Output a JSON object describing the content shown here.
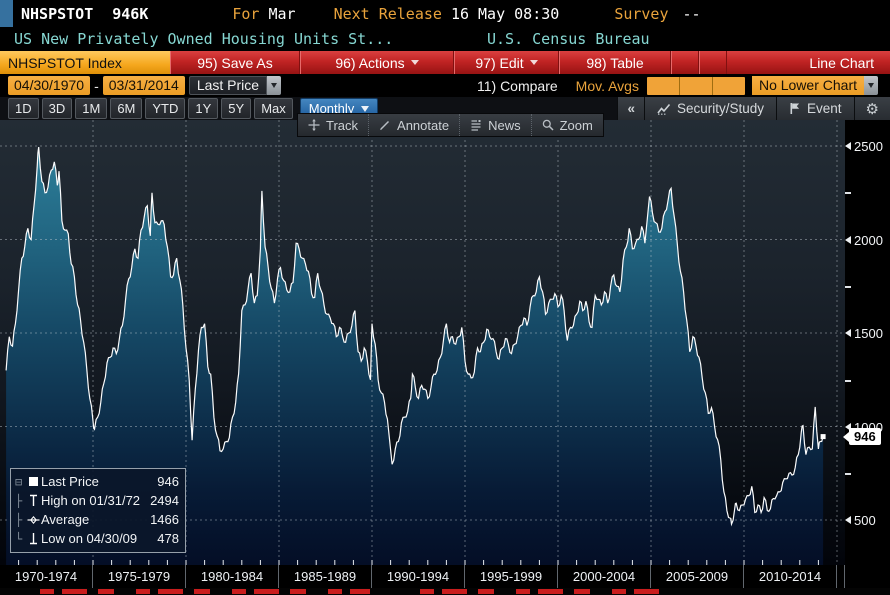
{
  "titlebar": {
    "ticker": "NHSPSTOT",
    "current_value": "946K",
    "for_label": "For",
    "period": "Mar",
    "next_release_label": "Next Release",
    "next_release": "16 May 08:30",
    "survey_label": "Survey",
    "survey_value": "--"
  },
  "descbar": {
    "series_name": "US New Privately Owned Housing Units St...",
    "source": "U.S. Census Bureau"
  },
  "menubar": {
    "security_tab": "NHSPSTOT Index",
    "save_as": "95) Save As",
    "actions": "96) Actions",
    "edit": "97) Edit",
    "table": "98) Table",
    "chart_type": "Line Chart"
  },
  "rangebar": {
    "start_date": "04/30/1970",
    "dash": "-",
    "end_date": "03/31/2014",
    "price_field": "Last Price",
    "compare": "11) Compare",
    "mov_avgs": "Mov. Avgs",
    "lower_chart": "No Lower Chart"
  },
  "periodbar": {
    "periods": [
      "1D",
      "3D",
      "1M",
      "6M",
      "YTD",
      "1Y",
      "5Y",
      "Max"
    ],
    "frequency": "Monthly",
    "collapse": "«",
    "security_study": "Security/Study",
    "event": "Event",
    "gear": "⚙"
  },
  "chart_toolbar": {
    "track": "Track",
    "annotate": "Annotate",
    "news": "News",
    "zoom": "Zoom"
  },
  "legend": {
    "tree": [
      "⊟",
      "├",
      "├",
      "└"
    ],
    "rows": [
      {
        "label": "Last Price",
        "value": "946"
      },
      {
        "label": "High on 01/31/72",
        "value": "2494"
      },
      {
        "label": "Average",
        "value": "1466"
      },
      {
        "label": "Low on 04/30/09",
        "value": "478"
      }
    ]
  },
  "y_axis": {
    "labels": [
      "2500",
      "2000",
      "1500",
      "1000",
      "500"
    ],
    "last_price_tag": "946"
  },
  "x_axis": {
    "labels": [
      "1970-1974",
      "1975-1979",
      "1980-1984",
      "1985-1989",
      "1990-1994",
      "1995-1999",
      "2000-2004",
      "2005-2009",
      "2010-2014"
    ]
  },
  "chart_data": {
    "type": "line",
    "style": "area",
    "title": "NHSPSTOT Index - US New Privately Owned Housing Units Started, Monthly, Last Price",
    "xlabel": "",
    "ylabel": "",
    "x_start": 1970.33,
    "x_end": 2014.25,
    "ylim": [
      260,
      2560
    ],
    "yticks": [
      500,
      1000,
      1500,
      2000,
      2500
    ],
    "yticks_minor": [
      750,
      1250,
      1750,
      2250
    ],
    "x_gridyears": [
      1975,
      1980,
      1985,
      1990,
      1995,
      2000,
      2005,
      2010,
      2015
    ],
    "x_bins": [
      "1970-1974",
      "1975-1979",
      "1980-1984",
      "1985-1989",
      "1990-1994",
      "1995-1999",
      "2000-2004",
      "2005-2009",
      "2010-2014"
    ],
    "stats": {
      "last": 946,
      "high_date": "01/31/72",
      "high": 2494,
      "average": 1466,
      "low_date": "04/30/09",
      "low": 478
    },
    "points": [
      [
        1970.33,
        1300
      ],
      [
        1970.5,
        1480
      ],
      [
        1970.67,
        1430
      ],
      [
        1970.83,
        1550
      ],
      [
        1971.0,
        1730
      ],
      [
        1971.17,
        1900
      ],
      [
        1971.33,
        1960
      ],
      [
        1971.5,
        2060
      ],
      [
        1971.67,
        2000
      ],
      [
        1971.83,
        2180
      ],
      [
        1972.0,
        2390
      ],
      [
        1972.08,
        2494
      ],
      [
        1972.25,
        2310
      ],
      [
        1972.42,
        2250
      ],
      [
        1972.58,
        2280
      ],
      [
        1972.75,
        2370
      ],
      [
        1972.92,
        2415
      ],
      [
        1973.08,
        2290
      ],
      [
        1973.17,
        2365
      ],
      [
        1973.33,
        2100
      ],
      [
        1973.5,
        2050
      ],
      [
        1973.67,
        2030
      ],
      [
        1973.83,
        1870
      ],
      [
        1974.0,
        1800
      ],
      [
        1974.17,
        1650
      ],
      [
        1974.33,
        1570
      ],
      [
        1974.5,
        1450
      ],
      [
        1974.67,
        1300
      ],
      [
        1974.83,
        1150
      ],
      [
        1975.0,
        1030
      ],
      [
        1975.08,
        985
      ],
      [
        1975.25,
        1050
      ],
      [
        1975.42,
        1130
      ],
      [
        1975.58,
        1230
      ],
      [
        1975.75,
        1340
      ],
      [
        1975.92,
        1370
      ],
      [
        1976.08,
        1420
      ],
      [
        1976.25,
        1390
      ],
      [
        1976.42,
        1470
      ],
      [
        1976.58,
        1540
      ],
      [
        1976.75,
        1680
      ],
      [
        1976.92,
        1790
      ],
      [
        1977.08,
        1850
      ],
      [
        1977.25,
        1950
      ],
      [
        1977.42,
        1900
      ],
      [
        1977.58,
        2050
      ],
      [
        1977.75,
        2120
      ],
      [
        1977.92,
        2180
      ],
      [
        1978.08,
        2020
      ],
      [
        1978.17,
        2250
      ],
      [
        1978.33,
        2090
      ],
      [
        1978.5,
        2080
      ],
      [
        1978.67,
        2100
      ],
      [
        1978.83,
        2080
      ],
      [
        1979.0,
        1960
      ],
      [
        1979.17,
        1800
      ],
      [
        1979.33,
        1810
      ],
      [
        1979.5,
        1900
      ],
      [
        1979.67,
        1780
      ],
      [
        1979.83,
        1650
      ],
      [
        1980.0,
        1420
      ],
      [
        1980.17,
        1250
      ],
      [
        1980.33,
        927
      ],
      [
        1980.5,
        1200
      ],
      [
        1980.67,
        1410
      ],
      [
        1980.83,
        1530
      ],
      [
        1981.0,
        1550
      ],
      [
        1981.17,
        1320
      ],
      [
        1981.33,
        1280
      ],
      [
        1981.5,
        1050
      ],
      [
        1981.67,
        950
      ],
      [
        1981.83,
        870
      ],
      [
        1982.0,
        880
      ],
      [
        1982.17,
        920
      ],
      [
        1982.33,
        940
      ],
      [
        1982.5,
        1050
      ],
      [
        1982.67,
        1130
      ],
      [
        1982.83,
        1280
      ],
      [
        1983.0,
        1620
      ],
      [
        1983.17,
        1650
      ],
      [
        1983.33,
        1730
      ],
      [
        1983.5,
        1820
      ],
      [
        1983.67,
        1660
      ],
      [
        1983.83,
        1700
      ],
      [
        1984.0,
        1950
      ],
      [
        1984.08,
        2260
      ],
      [
        1984.25,
        1960
      ],
      [
        1984.42,
        1850
      ],
      [
        1984.58,
        1740
      ],
      [
        1984.75,
        1660
      ],
      [
        1984.92,
        1790
      ],
      [
        1985.08,
        1850
      ],
      [
        1985.25,
        1780
      ],
      [
        1985.42,
        1730
      ],
      [
        1985.58,
        1720
      ],
      [
        1985.75,
        1770
      ],
      [
        1985.92,
        1980
      ],
      [
        1986.08,
        1950
      ],
      [
        1986.25,
        1900
      ],
      [
        1986.42,
        1870
      ],
      [
        1986.58,
        1830
      ],
      [
        1986.75,
        1710
      ],
      [
        1986.92,
        1690
      ],
      [
        1987.08,
        1820
      ],
      [
        1987.25,
        1730
      ],
      [
        1987.42,
        1650
      ],
      [
        1987.58,
        1600
      ],
      [
        1987.75,
        1580
      ],
      [
        1987.92,
        1550
      ],
      [
        1988.08,
        1480
      ],
      [
        1988.25,
        1530
      ],
      [
        1988.42,
        1480
      ],
      [
        1988.58,
        1450
      ],
      [
        1988.75,
        1500
      ],
      [
        1988.92,
        1540
      ],
      [
        1989.08,
        1620
      ],
      [
        1989.25,
        1400
      ],
      [
        1989.42,
        1350
      ],
      [
        1989.58,
        1420
      ],
      [
        1989.75,
        1350
      ],
      [
        1989.92,
        1250
      ],
      [
        1990.0,
        1550
      ],
      [
        1990.17,
        1440
      ],
      [
        1990.33,
        1250
      ],
      [
        1990.5,
        1180
      ],
      [
        1990.67,
        1130
      ],
      [
        1990.83,
        1040
      ],
      [
        1991.08,
        798
      ],
      [
        1991.25,
        880
      ],
      [
        1991.42,
        920
      ],
      [
        1991.58,
        1020
      ],
      [
        1991.75,
        1050
      ],
      [
        1991.92,
        1080
      ],
      [
        1992.08,
        1150
      ],
      [
        1992.17,
        1280
      ],
      [
        1992.33,
        1210
      ],
      [
        1992.5,
        1150
      ],
      [
        1992.67,
        1220
      ],
      [
        1992.83,
        1200
      ],
      [
        1993.0,
        1150
      ],
      [
        1993.17,
        1210
      ],
      [
        1993.33,
        1280
      ],
      [
        1993.5,
        1300
      ],
      [
        1993.67,
        1370
      ],
      [
        1993.83,
        1450
      ],
      [
        1994.0,
        1550
      ],
      [
        1994.17,
        1450
      ],
      [
        1994.33,
        1480
      ],
      [
        1994.5,
        1440
      ],
      [
        1994.67,
        1480
      ],
      [
        1994.83,
        1530
      ],
      [
        1995.0,
        1350
      ],
      [
        1995.17,
        1280
      ],
      [
        1995.33,
        1260
      ],
      [
        1995.5,
        1290
      ],
      [
        1995.67,
        1420
      ],
      [
        1995.83,
        1400
      ],
      [
        1996.0,
        1450
      ],
      [
        1996.17,
        1520
      ],
      [
        1996.33,
        1480
      ],
      [
        1996.5,
        1470
      ],
      [
        1996.67,
        1400
      ],
      [
        1996.83,
        1360
      ],
      [
        1997.0,
        1420
      ],
      [
        1997.17,
        1470
      ],
      [
        1997.33,
        1440
      ],
      [
        1997.5,
        1390
      ],
      [
        1997.67,
        1440
      ],
      [
        1997.83,
        1480
      ],
      [
        1998.0,
        1540
      ],
      [
        1998.17,
        1580
      ],
      [
        1998.33,
        1540
      ],
      [
        1998.5,
        1640
      ],
      [
        1998.67,
        1700
      ],
      [
        1998.83,
        1720
      ],
      [
        1999.0,
        1800
      ],
      [
        1999.17,
        1720
      ],
      [
        1999.33,
        1600
      ],
      [
        1999.5,
        1660
      ],
      [
        1999.67,
        1680
      ],
      [
        1999.83,
        1710
      ],
      [
        2000.0,
        1640
      ],
      [
        2000.17,
        1700
      ],
      [
        2000.33,
        1620
      ],
      [
        2000.5,
        1460
      ],
      [
        2000.67,
        1530
      ],
      [
        2000.83,
        1540
      ],
      [
        2001.0,
        1600
      ],
      [
        2001.17,
        1670
      ],
      [
        2001.33,
        1620
      ],
      [
        2001.5,
        1670
      ],
      [
        2001.67,
        1560
      ],
      [
        2001.83,
        1530
      ],
      [
        2002.0,
        1700
      ],
      [
        2002.17,
        1680
      ],
      [
        2002.33,
        1650
      ],
      [
        2002.5,
        1720
      ],
      [
        2002.67,
        1660
      ],
      [
        2002.83,
        1750
      ],
      [
        2003.0,
        1810
      ],
      [
        2003.17,
        1750
      ],
      [
        2003.33,
        1720
      ],
      [
        2003.5,
        1890
      ],
      [
        2003.67,
        1960
      ],
      [
        2003.83,
        2060
      ],
      [
        2004.0,
        1950
      ],
      [
        2004.17,
        1980
      ],
      [
        2004.33,
        2000
      ],
      [
        2004.5,
        2070
      ],
      [
        2004.67,
        1980
      ],
      [
        2004.92,
        2230
      ],
      [
        2005.08,
        2140
      ],
      [
        2005.25,
        2090
      ],
      [
        2005.42,
        2040
      ],
      [
        2005.58,
        2060
      ],
      [
        2005.75,
        2150
      ],
      [
        2005.92,
        2210
      ],
      [
        2006.08,
        2273
      ],
      [
        2006.25,
        2120
      ],
      [
        2006.42,
        1970
      ],
      [
        2006.58,
        1830
      ],
      [
        2006.75,
        1720
      ],
      [
        2006.92,
        1570
      ],
      [
        2007.08,
        1400
      ],
      [
        2007.25,
        1480
      ],
      [
        2007.42,
        1430
      ],
      [
        2007.58,
        1370
      ],
      [
        2007.75,
        1260
      ],
      [
        2007.92,
        1180
      ],
      [
        2008.08,
        1070
      ],
      [
        2008.25,
        1100
      ],
      [
        2008.42,
        1000
      ],
      [
        2008.58,
        930
      ],
      [
        2008.75,
        820
      ],
      [
        2008.92,
        650
      ],
      [
        2009.08,
        550
      ],
      [
        2009.25,
        510
      ],
      [
        2009.33,
        478
      ],
      [
        2009.5,
        560
      ],
      [
        2009.58,
        590
      ],
      [
        2009.75,
        550
      ],
      [
        2009.92,
        580
      ],
      [
        2010.08,
        610
      ],
      [
        2010.25,
        630
      ],
      [
        2010.42,
        680
      ],
      [
        2010.58,
        540
      ],
      [
        2010.75,
        580
      ],
      [
        2010.92,
        540
      ],
      [
        2011.08,
        620
      ],
      [
        2011.25,
        550
      ],
      [
        2011.42,
        560
      ],
      [
        2011.58,
        615
      ],
      [
        2011.75,
        630
      ],
      [
        2011.92,
        650
      ],
      [
        2012.08,
        700
      ],
      [
        2012.25,
        720
      ],
      [
        2012.42,
        750
      ],
      [
        2012.58,
        740
      ],
      [
        2012.75,
        780
      ],
      [
        2012.92,
        850
      ],
      [
        2013.08,
        970
      ],
      [
        2013.17,
        1005
      ],
      [
        2013.33,
        850
      ],
      [
        2013.5,
        890
      ],
      [
        2013.67,
        880
      ],
      [
        2013.83,
        1105
      ],
      [
        2014.0,
        880
      ],
      [
        2014.1,
        920
      ],
      [
        2014.25,
        946
      ]
    ],
    "colors": {
      "line": "#fbfcfd",
      "fill_top": "#2d7f9a",
      "fill_bottom": "#040e26",
      "bg_top": "#232c35",
      "bg_bottom": "#02040a",
      "amber": "#e9a33c",
      "red_bar": "#c12424",
      "cyan": "#86d7d2"
    }
  }
}
